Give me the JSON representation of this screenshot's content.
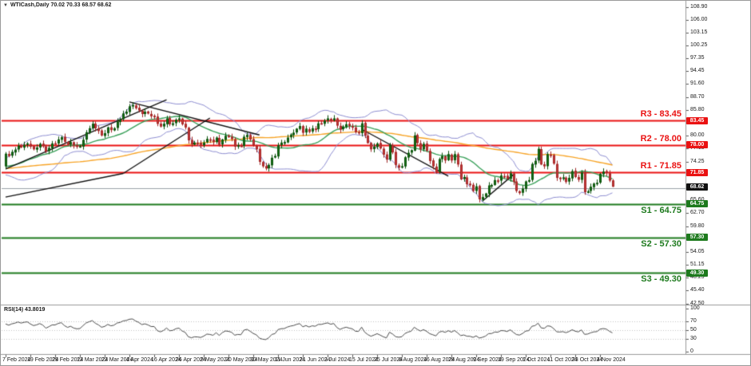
{
  "header": {
    "symbol_marker": "▼",
    "title": "WTICash,Daily 70.02 70.33 68.57 68.62"
  },
  "chart_data": {
    "type": "candlestick",
    "symbol": "WTICash",
    "timeframe": "Daily",
    "ohlc_display": {
      "open": "70.02",
      "high": "70.33",
      "low": "68.57",
      "close": "68.62"
    },
    "price_axis": {
      "ylim": [
        42.5,
        108.9
      ],
      "ticks": [
        "108.90",
        "106.00",
        "103.15",
        "100.25",
        "97.35",
        "94.45",
        "91.60",
        "88.70",
        "85.80",
        "82.90",
        "80.00",
        "77.15",
        "74.25",
        "65.60",
        "62.70",
        "59.80",
        "54.05",
        "51.15",
        "48.25",
        "45.40",
        "42.50"
      ]
    },
    "date_axis": {
      "labels": [
        "7 Feb 2024",
        "19 Feb 2024",
        "29 Feb 2024",
        "12 Mar 2024",
        "22 Mar 2024",
        "4 Apr 2024",
        "16 Apr 2024",
        "26 Apr 2024",
        "8 May 2024",
        "20 May 2024",
        "30 May 2024",
        "11 Jun 2024",
        "21 Jun 2024",
        "3 Jul 2024",
        "15 Jul 2024",
        "25 Jul 2024",
        "6 Aug 2024",
        "16 Aug 2024",
        "28 Aug 2024",
        "9 Sep 2024",
        "19 Sep 2024",
        "1 Oct 2024",
        "11 Oct 2024",
        "23 Oct 2024",
        "4 Nov 2024"
      ],
      "candles_per_label": 8
    },
    "levels": [
      {
        "name": "R3",
        "label": "R3 - 83.45",
        "value": 83.45,
        "axis_value": "83.45",
        "kind": "resistance",
        "color": "#ea1212"
      },
      {
        "name": "R2",
        "label": "R2 - 78.00",
        "value": 78.0,
        "axis_value": "78.00",
        "kind": "resistance",
        "color": "#ea1212"
      },
      {
        "name": "R1",
        "label": "R1 - 71.85",
        "value": 71.85,
        "axis_value": "71.85",
        "kind": "resistance",
        "color": "#ea1212"
      },
      {
        "name": "S1",
        "label": "S1 - 64.75",
        "value": 64.75,
        "axis_value": "64.75",
        "kind": "support",
        "color": "#1d7a1d"
      },
      {
        "name": "S2",
        "label": "S2 - 57.30",
        "value": 57.3,
        "axis_value": "57.30",
        "kind": "support",
        "color": "#1d7a1d"
      },
      {
        "name": "S3",
        "label": "S3 - 49.30",
        "value": 49.3,
        "axis_value": "49.30",
        "kind": "support",
        "color": "#1d7a1d"
      }
    ],
    "pivot_line": {
      "value": 68.3,
      "color": "#9aa0a8"
    },
    "current_price": {
      "value": 68.62,
      "text": "68.62",
      "tag_color": "#111111"
    },
    "candles": {
      "first_open": 73.2,
      "closes_warmup": [
        70.4,
        71.0,
        72.2,
        72.6,
        72.0,
        70.8,
        71.4,
        72.1,
        72.7,
        72.5,
        73.4,
        74.1,
        74.9,
        75.1,
        74.3,
        73.8,
        72.5,
        71.8,
        72.3,
        73.0,
        72.4,
        71.6,
        72.8,
        73.5,
        72.9,
        72.2,
        71.1,
        70.5,
        71.3,
        72.0,
        72.6,
        73.2,
        72.8,
        72.1,
        71.5,
        72.4,
        73.1,
        73.8,
        74.2,
        73.6,
        72.9,
        72.3,
        71.7,
        72.5,
        73.3,
        72.7,
        72.0,
        72.9,
        73.6,
        74.0,
        73.4,
        72.6,
        71.9,
        72.8,
        73.2
      ],
      "closes": [
        76.0,
        75.5,
        76.4,
        76.9,
        77.8,
        77.4,
        78.0,
        78.3,
        77.6,
        77.0,
        77.4,
        78.2,
        77.7,
        76.5,
        77.3,
        78.3,
        78.3,
        79.2,
        79.7,
        78.7,
        78.0,
        78.6,
        77.9,
        77.6,
        77.7,
        79.1,
        80.8,
        81.7,
        82.7,
        81.7,
        81.1,
        80.1,
        80.6,
        81.9,
        81.3,
        81.7,
        83.2,
        83.7,
        85.0,
        85.4,
        86.6,
        86.9,
        86.2,
        85.7,
        84.9,
        85.4,
        85.0,
        84.4,
        84.4,
        82.7,
        82.1,
        82.7,
        83.9,
        82.6,
        82.8,
        83.6,
        83.9,
        82.6,
        81.9,
        79.0,
        78.1,
        78.5,
        78.4,
        78.0,
        78.5,
        79.3,
        79.1,
        78.6,
        79.6,
        78.0,
        79.2,
        80.0,
        79.8,
        79.3,
        77.6,
        77.9,
        77.7,
        79.8,
        80.2,
        79.2,
        77.9,
        77.0,
        74.2,
        73.2,
        72.7,
        73.5,
        75.1,
        75.5,
        77.9,
        78.5,
        78.6,
        79.6,
        80.3,
        80.7,
        81.6,
        82.2,
        80.7,
        81.6,
        80.9,
        81.7,
        81.5,
        82.8,
        82.8,
        83.4,
        83.9,
        83.4,
        83.9,
        82.3,
        81.4,
        82.1,
        82.6,
        82.2,
        81.9,
        80.8,
        80.7,
        82.8,
        80.1,
        78.4,
        77.0,
        77.6,
        78.3,
        77.2,
        75.8,
        74.7,
        77.9,
        76.3,
        73.5,
        72.9,
        73.2,
        75.2,
        76.2,
        76.8,
        80.1,
        78.4,
        77.0,
        78.2,
        76.7,
        74.4,
        73.2,
        71.9,
        74.8,
        75.5,
        74.5,
        75.9,
        74.5,
        75.9,
        73.6,
        70.3,
        70.8,
        69.2,
        69.1,
        67.7,
        68.7,
        65.8,
        66.3,
        67.1,
        68.9,
        69.0,
        70.1,
        69.9,
        71.1,
        71.0,
        70.4,
        71.6,
        69.7,
        67.7,
        67.2,
        68.2,
        69.8,
        70.1,
        73.7,
        74.4,
        77.1,
        73.6,
        73.2,
        75.9,
        75.6,
        73.8,
        70.6,
        70.4,
        70.7,
        69.7,
        70.6,
        72.1,
        70.8,
        70.2,
        71.8,
        67.4,
        67.6,
        68.6,
        69.3,
        69.5,
        71.5,
        72.0,
        71.7,
        70.0,
        68.62
      ],
      "last": {
        "o": 70.02,
        "h": 70.33,
        "l": 68.57,
        "c": 68.62
      },
      "bull_color": "#177317",
      "bull_border": "#0b4f0b",
      "bear_color": "#cd3c3c",
      "bear_border": "#9e2424"
    },
    "indicators": {
      "bollinger": {
        "period": 20,
        "deviation": 2,
        "color": "#8c8cd0"
      },
      "ma_fast": {
        "period": 20,
        "color": "#3aa05a"
      },
      "ma_slow": {
        "period": 90,
        "color": "#f7a325"
      },
      "rsi": {
        "label": "RSI(14) 43.8019",
        "period": 14,
        "value": 43.8019,
        "levels": [
          70,
          50,
          30
        ],
        "axis_ticks": [
          100,
          70,
          50,
          30,
          0
        ],
        "color": "#4a4a4a"
      }
    },
    "trend_lines": [
      [
        0,
        72.6,
        52,
        88.1
      ],
      [
        0,
        66.3,
        38,
        71.6
      ],
      [
        38,
        71.6,
        66,
        84.0
      ],
      [
        40,
        87.6,
        82,
        80.2
      ],
      [
        115,
        81.5,
        143,
        71.0
      ],
      [
        154,
        65.4,
        164,
        71.3
      ]
    ],
    "trend_line_color": "#111111",
    "legend_position": "none",
    "grid": "off"
  }
}
